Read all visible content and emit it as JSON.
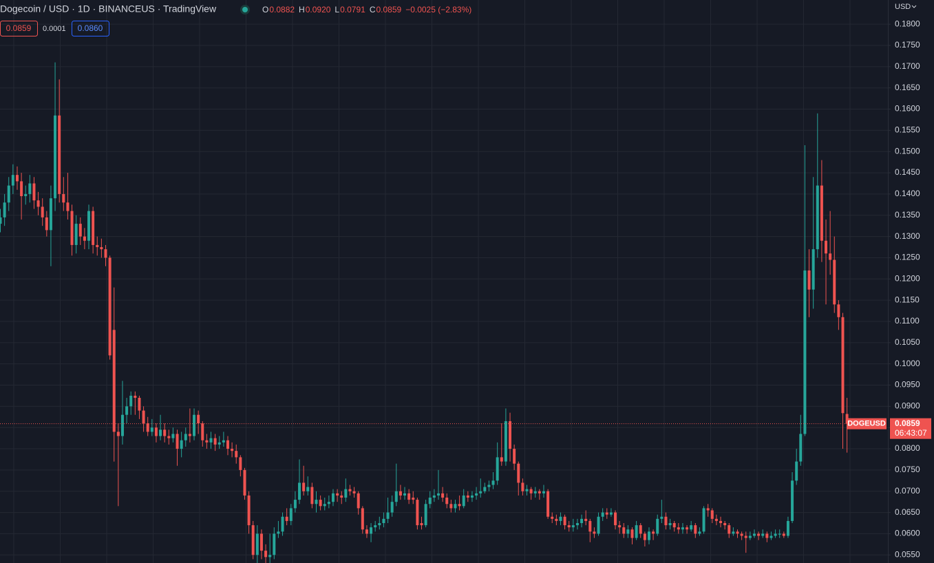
{
  "chart_data": {
    "type": "candlestick",
    "title": "Dogecoin / USD · 1D · BINANCEUS · TradingView",
    "legend": [
      {
        "key": "O",
        "value": "0.0882"
      },
      {
        "key": "H",
        "value": "0.0920"
      },
      {
        "key": "L",
        "value": "0.0791"
      },
      {
        "key": "C",
        "value": "0.0859"
      }
    ],
    "change": "−0.0025 (−2.83%)",
    "bid": "0.0859",
    "spread": "0.0001",
    "ask": "0.0860",
    "currency": "USD",
    "symbol": "DOGEUSD",
    "last_price": "0.0859",
    "countdown": "06:43:07",
    "up_color": "#26a69a",
    "down_color": "#ef5350",
    "grid": true,
    "ylim": [
      0.0531,
      0.1857
    ],
    "yticks": [
      {
        "value": 0.055,
        "label": "0.0550"
      },
      {
        "value": 0.06,
        "label": "0.0600"
      },
      {
        "value": 0.065,
        "label": "0.0650"
      },
      {
        "value": 0.07,
        "label": "0.0700"
      },
      {
        "value": 0.075,
        "label": "0.0750"
      },
      {
        "value": 0.08,
        "label": "0.0800"
      },
      {
        "value": 0.085,
        "label": "0.0850"
      },
      {
        "value": 0.09,
        "label": "0.0900"
      },
      {
        "value": 0.095,
        "label": "0.0950"
      },
      {
        "value": 0.1,
        "label": "0.1000"
      },
      {
        "value": 0.105,
        "label": "0.1050"
      },
      {
        "value": 0.11,
        "label": "0.1100"
      },
      {
        "value": 0.115,
        "label": "0.1150"
      },
      {
        "value": 0.12,
        "label": "0.1200"
      },
      {
        "value": 0.125,
        "label": "0.1250"
      },
      {
        "value": 0.13,
        "label": "0.1300"
      },
      {
        "value": 0.135,
        "label": "0.1350"
      },
      {
        "value": 0.14,
        "label": "0.1400"
      },
      {
        "value": 0.145,
        "label": "0.1450"
      },
      {
        "value": 0.15,
        "label": "0.1500"
      },
      {
        "value": 0.155,
        "label": "0.1550"
      },
      {
        "value": 0.16,
        "label": "0.1600"
      },
      {
        "value": 0.165,
        "label": "0.1650"
      },
      {
        "value": 0.17,
        "label": "0.1700"
      },
      {
        "value": 0.175,
        "label": "0.1750"
      },
      {
        "value": 0.18,
        "label": "0.1800"
      }
    ],
    "ohlc": [
      [
        0.133,
        0.1365,
        0.131,
        0.1345
      ],
      [
        0.1345,
        0.14,
        0.1325,
        0.138
      ],
      [
        0.138,
        0.144,
        0.136,
        0.142
      ],
      [
        0.142,
        0.147,
        0.14,
        0.1445
      ],
      [
        0.1445,
        0.1465,
        0.141,
        0.143
      ],
      [
        0.143,
        0.145,
        0.134,
        0.1395
      ],
      [
        0.1395,
        0.142,
        0.1375,
        0.14
      ],
      [
        0.14,
        0.1445,
        0.138,
        0.1425
      ],
      [
        0.1425,
        0.144,
        0.1365,
        0.1385
      ],
      [
        0.1385,
        0.1405,
        0.135,
        0.137
      ],
      [
        0.137,
        0.139,
        0.1325,
        0.1345
      ],
      [
        0.1345,
        0.136,
        0.13,
        0.1315
      ],
      [
        0.1315,
        0.142,
        0.123,
        0.139
      ],
      [
        0.139,
        0.171,
        0.136,
        0.1585
      ],
      [
        0.1585,
        0.167,
        0.138,
        0.14
      ],
      [
        0.14,
        0.144,
        0.136,
        0.138
      ],
      [
        0.138,
        0.145,
        0.134,
        0.136
      ],
      [
        0.136,
        0.1375,
        0.1255,
        0.128
      ],
      [
        0.128,
        0.135,
        0.126,
        0.133
      ],
      [
        0.133,
        0.1345,
        0.128,
        0.13
      ],
      [
        0.13,
        0.132,
        0.127,
        0.129
      ],
      [
        0.129,
        0.1375,
        0.127,
        0.136
      ],
      [
        0.136,
        0.137,
        0.126,
        0.128
      ],
      [
        0.128,
        0.13,
        0.1255,
        0.1275
      ],
      [
        0.1275,
        0.1295,
        0.125,
        0.127
      ],
      [
        0.127,
        0.128,
        0.123,
        0.125
      ],
      [
        0.125,
        0.1255,
        0.101,
        0.102
      ],
      [
        0.108,
        0.118,
        0.077,
        0.084
      ],
      [
        0.084,
        0.086,
        0.0665,
        0.083
      ],
      [
        0.083,
        0.096,
        0.081,
        0.088
      ],
      [
        0.088,
        0.092,
        0.086,
        0.09
      ],
      [
        0.09,
        0.0935,
        0.088,
        0.0925
      ],
      [
        0.0925,
        0.0935,
        0.088,
        0.092
      ],
      [
        0.092,
        0.0925,
        0.087,
        0.089
      ],
      [
        0.089,
        0.09,
        0.084,
        0.086
      ],
      [
        0.086,
        0.0875,
        0.083,
        0.084
      ],
      [
        0.084,
        0.087,
        0.083,
        0.085
      ],
      [
        0.085,
        0.086,
        0.0815,
        0.083
      ],
      [
        0.083,
        0.088,
        0.082,
        0.0845
      ],
      [
        0.0845,
        0.086,
        0.0815,
        0.083
      ],
      [
        0.083,
        0.0845,
        0.081,
        0.0825
      ],
      [
        0.0825,
        0.085,
        0.0815,
        0.0835
      ],
      [
        0.0835,
        0.0845,
        0.076,
        0.08
      ],
      [
        0.08,
        0.084,
        0.078,
        0.082
      ],
      [
        0.082,
        0.085,
        0.0805,
        0.0835
      ],
      [
        0.0835,
        0.0895,
        0.0815,
        0.083
      ],
      [
        0.083,
        0.0895,
        0.082,
        0.088
      ],
      [
        0.088,
        0.089,
        0.0835,
        0.086
      ],
      [
        0.086,
        0.0865,
        0.0805,
        0.082
      ],
      [
        0.082,
        0.0835,
        0.08,
        0.0815
      ],
      [
        0.0815,
        0.084,
        0.08,
        0.0825
      ],
      [
        0.0825,
        0.0835,
        0.0795,
        0.081
      ],
      [
        0.081,
        0.083,
        0.08,
        0.0815
      ],
      [
        0.0815,
        0.084,
        0.0805,
        0.082
      ],
      [
        0.082,
        0.083,
        0.0785,
        0.08
      ],
      [
        0.08,
        0.0815,
        0.078,
        0.0795
      ],
      [
        0.0795,
        0.081,
        0.0765,
        0.078
      ],
      [
        0.078,
        0.0785,
        0.0735,
        0.075
      ],
      [
        0.075,
        0.0755,
        0.068,
        0.069
      ],
      [
        0.069,
        0.07,
        0.06,
        0.062
      ],
      [
        0.062,
        0.063,
        0.054,
        0.055
      ],
      [
        0.055,
        0.062,
        0.053,
        0.06
      ],
      [
        0.06,
        0.061,
        0.054,
        0.056
      ],
      [
        0.056,
        0.0575,
        0.053,
        0.0545
      ],
      [
        0.0545,
        0.06,
        0.053,
        0.055
      ],
      [
        0.055,
        0.0615,
        0.054,
        0.06
      ],
      [
        0.06,
        0.063,
        0.059,
        0.0605
      ],
      [
        0.0605,
        0.065,
        0.0595,
        0.064
      ],
      [
        0.064,
        0.066,
        0.062,
        0.063
      ],
      [
        0.063,
        0.067,
        0.062,
        0.066
      ],
      [
        0.066,
        0.07,
        0.065,
        0.068
      ],
      [
        0.068,
        0.0775,
        0.067,
        0.072
      ],
      [
        0.072,
        0.076,
        0.069,
        0.07
      ],
      [
        0.07,
        0.0735,
        0.069,
        0.071
      ],
      [
        0.071,
        0.072,
        0.066,
        0.067
      ],
      [
        0.067,
        0.07,
        0.065,
        0.068
      ],
      [
        0.068,
        0.069,
        0.0655,
        0.0665
      ],
      [
        0.0665,
        0.0685,
        0.0655,
        0.067
      ],
      [
        0.067,
        0.069,
        0.066,
        0.0675
      ],
      [
        0.0675,
        0.0705,
        0.0665,
        0.0695
      ],
      [
        0.0695,
        0.0705,
        0.0675,
        0.069
      ],
      [
        0.069,
        0.07,
        0.067,
        0.0685
      ],
      [
        0.0685,
        0.073,
        0.0675,
        0.0705
      ],
      [
        0.0705,
        0.0715,
        0.069,
        0.07
      ],
      [
        0.07,
        0.071,
        0.0685,
        0.0695
      ],
      [
        0.0695,
        0.07,
        0.0645,
        0.066
      ],
      [
        0.066,
        0.0665,
        0.06,
        0.061
      ],
      [
        0.061,
        0.062,
        0.059,
        0.06
      ],
      [
        0.06,
        0.0625,
        0.058,
        0.0615
      ],
      [
        0.0615,
        0.063,
        0.0605,
        0.062
      ],
      [
        0.062,
        0.064,
        0.061,
        0.0625
      ],
      [
        0.0625,
        0.065,
        0.0615,
        0.0635
      ],
      [
        0.0635,
        0.0685,
        0.0625,
        0.065
      ],
      [
        0.065,
        0.069,
        0.064,
        0.0675
      ],
      [
        0.0675,
        0.0765,
        0.0665,
        0.07
      ],
      [
        0.07,
        0.0715,
        0.068,
        0.069
      ],
      [
        0.069,
        0.071,
        0.068,
        0.0695
      ],
      [
        0.0695,
        0.0705,
        0.067,
        0.068
      ],
      [
        0.0685,
        0.07,
        0.067,
        0.068
      ],
      [
        0.068,
        0.0685,
        0.061,
        0.062
      ],
      [
        0.0625,
        0.064,
        0.061,
        0.062
      ],
      [
        0.062,
        0.068,
        0.0615,
        0.067
      ],
      [
        0.067,
        0.07,
        0.066,
        0.0685
      ],
      [
        0.0685,
        0.0705,
        0.0675,
        0.069
      ],
      [
        0.069,
        0.075,
        0.068,
        0.0695
      ],
      [
        0.0695,
        0.071,
        0.0675,
        0.0685
      ],
      [
        0.0685,
        0.0695,
        0.066,
        0.067
      ],
      [
        0.067,
        0.068,
        0.065,
        0.066
      ],
      [
        0.066,
        0.068,
        0.065,
        0.067
      ],
      [
        0.067,
        0.069,
        0.0655,
        0.0665
      ],
      [
        0.0665,
        0.0705,
        0.066,
        0.069
      ],
      [
        0.069,
        0.07,
        0.0675,
        0.0685
      ],
      [
        0.0685,
        0.07,
        0.0675,
        0.069
      ],
      [
        0.069,
        0.071,
        0.068,
        0.0695
      ],
      [
        0.0695,
        0.073,
        0.0685,
        0.07
      ],
      [
        0.07,
        0.072,
        0.0695,
        0.071
      ],
      [
        0.071,
        0.0725,
        0.07,
        0.0715
      ],
      [
        0.0715,
        0.0745,
        0.0705,
        0.0725
      ],
      [
        0.0725,
        0.0815,
        0.0715,
        0.078
      ],
      [
        0.078,
        0.086,
        0.076,
        0.077
      ],
      [
        0.077,
        0.0895,
        0.076,
        0.0865
      ],
      [
        0.0865,
        0.0885,
        0.077,
        0.08
      ],
      [
        0.08,
        0.081,
        0.075,
        0.0765
      ],
      [
        0.0765,
        0.077,
        0.069,
        0.072
      ],
      [
        0.072,
        0.073,
        0.069,
        0.07
      ],
      [
        0.07,
        0.0715,
        0.069,
        0.0705
      ],
      [
        0.0705,
        0.071,
        0.068,
        0.0695
      ],
      [
        0.0695,
        0.071,
        0.0685,
        0.07
      ],
      [
        0.07,
        0.0705,
        0.068,
        0.0695
      ],
      [
        0.0695,
        0.0715,
        0.0685,
        0.07
      ],
      [
        0.07,
        0.0705,
        0.0635,
        0.064
      ],
      [
        0.064,
        0.065,
        0.0625,
        0.0635
      ],
      [
        0.0635,
        0.0645,
        0.062,
        0.063
      ],
      [
        0.063,
        0.065,
        0.062,
        0.064
      ],
      [
        0.064,
        0.0645,
        0.061,
        0.062
      ],
      [
        0.062,
        0.063,
        0.0605,
        0.0615
      ],
      [
        0.0615,
        0.0635,
        0.0605,
        0.062
      ],
      [
        0.062,
        0.0635,
        0.061,
        0.0625
      ],
      [
        0.0625,
        0.0645,
        0.0615,
        0.0635
      ],
      [
        0.0635,
        0.0655,
        0.062,
        0.063
      ],
      [
        0.063,
        0.0635,
        0.058,
        0.0605
      ],
      [
        0.0605,
        0.0615,
        0.059,
        0.06
      ],
      [
        0.06,
        0.065,
        0.0595,
        0.064
      ],
      [
        0.064,
        0.066,
        0.063,
        0.065
      ],
      [
        0.065,
        0.066,
        0.0635,
        0.0645
      ],
      [
        0.0645,
        0.066,
        0.064,
        0.065
      ],
      [
        0.065,
        0.0655,
        0.061,
        0.062
      ],
      [
        0.062,
        0.063,
        0.06,
        0.0615
      ],
      [
        0.0615,
        0.0625,
        0.059,
        0.06
      ],
      [
        0.06,
        0.062,
        0.059,
        0.061
      ],
      [
        0.061,
        0.0615,
        0.0575,
        0.059
      ],
      [
        0.059,
        0.063,
        0.0585,
        0.062
      ],
      [
        0.062,
        0.0625,
        0.059,
        0.06
      ],
      [
        0.06,
        0.0605,
        0.057,
        0.0585
      ],
      [
        0.0585,
        0.0615,
        0.0575,
        0.0605
      ],
      [
        0.0605,
        0.061,
        0.0585,
        0.06
      ],
      [
        0.06,
        0.0645,
        0.0595,
        0.0635
      ],
      [
        0.0635,
        0.068,
        0.0625,
        0.064
      ],
      [
        0.064,
        0.065,
        0.061,
        0.062
      ],
      [
        0.062,
        0.0635,
        0.061,
        0.0625
      ],
      [
        0.0625,
        0.063,
        0.0605,
        0.0615
      ],
      [
        0.0615,
        0.0625,
        0.06,
        0.061
      ],
      [
        0.061,
        0.0625,
        0.06,
        0.0615
      ],
      [
        0.0615,
        0.062,
        0.06,
        0.061
      ],
      [
        0.061,
        0.063,
        0.0605,
        0.062
      ],
      [
        0.062,
        0.0625,
        0.059,
        0.06
      ],
      [
        0.06,
        0.0615,
        0.0595,
        0.0605
      ],
      [
        0.0605,
        0.0665,
        0.06,
        0.066
      ],
      [
        0.066,
        0.067,
        0.064,
        0.0655
      ],
      [
        0.0655,
        0.066,
        0.0625,
        0.0635
      ],
      [
        0.0635,
        0.0645,
        0.062,
        0.063
      ],
      [
        0.063,
        0.064,
        0.0615,
        0.0625
      ],
      [
        0.0625,
        0.063,
        0.061,
        0.062
      ],
      [
        0.062,
        0.0625,
        0.059,
        0.06
      ],
      [
        0.06,
        0.0615,
        0.0595,
        0.0605
      ],
      [
        0.0605,
        0.061,
        0.059,
        0.06
      ],
      [
        0.06,
        0.0605,
        0.0585,
        0.0595
      ],
      [
        0.0595,
        0.0605,
        0.0555,
        0.059
      ],
      [
        0.059,
        0.0605,
        0.0585,
        0.0595
      ],
      [
        0.0595,
        0.061,
        0.059,
        0.06
      ],
      [
        0.06,
        0.0605,
        0.0585,
        0.0595
      ],
      [
        0.0595,
        0.061,
        0.059,
        0.06
      ],
      [
        0.06,
        0.0605,
        0.058,
        0.059
      ],
      [
        0.059,
        0.0605,
        0.0585,
        0.0595
      ],
      [
        0.0595,
        0.061,
        0.059,
        0.06
      ],
      [
        0.0598,
        0.061,
        0.059,
        0.06
      ],
      [
        0.06,
        0.0605,
        0.059,
        0.0595
      ],
      [
        0.0595,
        0.064,
        0.059,
        0.063
      ],
      [
        0.063,
        0.0745,
        0.0625,
        0.0725
      ],
      [
        0.0725,
        0.08,
        0.0715,
        0.077
      ],
      [
        0.077,
        0.088,
        0.076,
        0.0835
      ],
      [
        0.0835,
        0.1515,
        0.083,
        0.122
      ],
      [
        0.122,
        0.127,
        0.111,
        0.1175
      ],
      [
        0.1175,
        0.144,
        0.113,
        0.127
      ],
      [
        0.127,
        0.159,
        0.125,
        0.142
      ],
      [
        0.142,
        0.148,
        0.124,
        0.129
      ],
      [
        0.129,
        0.134,
        0.114,
        0.126
      ],
      [
        0.126,
        0.136,
        0.121,
        0.1245
      ],
      [
        0.1245,
        0.13,
        0.112,
        0.114
      ],
      [
        0.114,
        0.115,
        0.108,
        0.111
      ],
      [
        0.111,
        0.112,
        0.08,
        0.0884
      ],
      [
        0.0882,
        0.092,
        0.0791,
        0.0859
      ]
    ]
  }
}
